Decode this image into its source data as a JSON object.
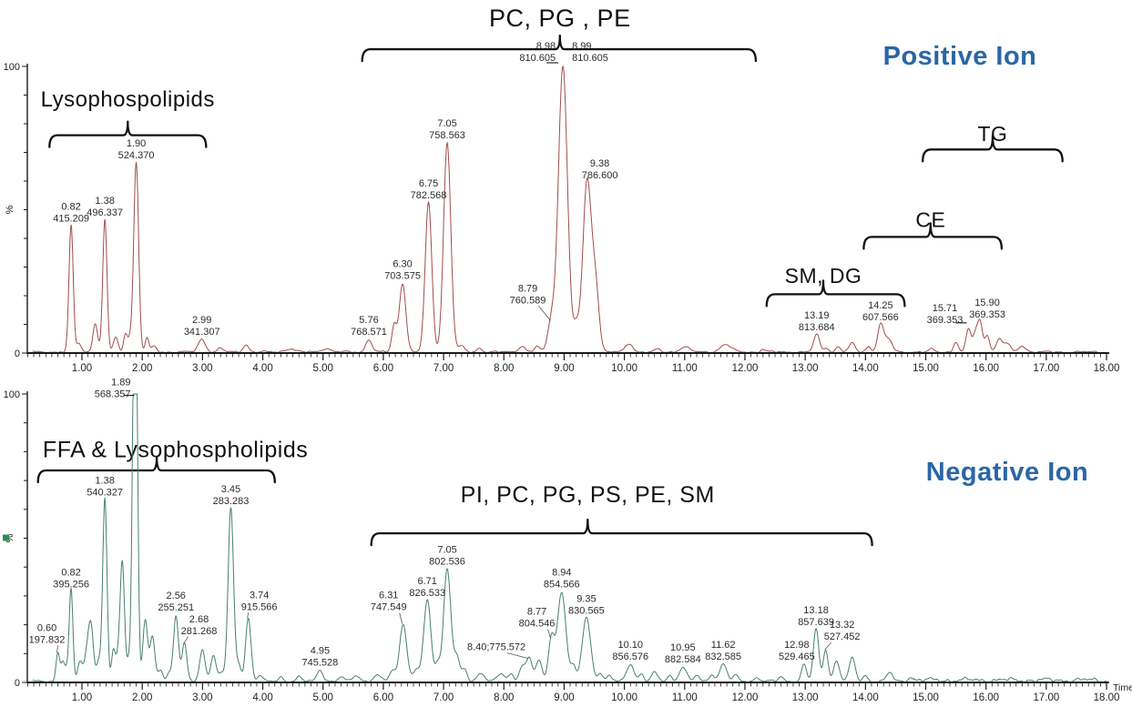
{
  "figure": {
    "background": "#ffffff",
    "axis_color": "#1a1a1a",
    "annotation_color": "#111111",
    "peak_label_color": "#2b2b2b",
    "title_color": "#2a66a6"
  },
  "chart_data": [
    {
      "type": "line",
      "id": "positive",
      "title": "Positive Ion",
      "trace_color": "#a24d4d",
      "ylabel": "%",
      "y_tick_labels": [
        "0",
        "100"
      ],
      "ylim": [
        0,
        100
      ],
      "xlim": [
        0.1,
        18.05
      ],
      "x_tick_labels": [
        "1.00",
        "2.00",
        "3.00",
        "4.00",
        "5.00",
        "6.00",
        "7.00",
        "8.00",
        "9.00",
        "10.00",
        "11.00",
        "12.00",
        "13.00",
        "14.00",
        "15.00",
        "16.00",
        "17.00",
        "18.00"
      ],
      "time_label": "",
      "noise": [
        {
          "from": 0.15,
          "to": 18.0,
          "amp": 0.7
        }
      ],
      "brackets": [
        {
          "label": "Lysophospolipids",
          "t1": 0.46,
          "t2": 3.06,
          "nub_t": 1.76,
          "bar_pct": 76,
          "label_pct": 86,
          "font": 24
        },
        {
          "label": "PC, PG , PE",
          "t1": 5.65,
          "t2": 12.18,
          "nub_t": 8.93,
          "bar_pct": 106,
          "label_pct": 114,
          "font": 27
        },
        {
          "label": "TG",
          "t1": 14.95,
          "t2": 17.27,
          "nub_t": 16.11,
          "bar_pct": 71,
          "label_pct": 74,
          "font": 23
        },
        {
          "label": "CE",
          "t1": 13.97,
          "t2": 16.26,
          "nub_t": 15.08,
          "bar_pct": 40.5,
          "label_pct": 44,
          "font": 23
        },
        {
          "label": "SM, DG",
          "t1": 12.36,
          "t2": 14.65,
          "nub_t": 13.3,
          "bar_pct": 20.5,
          "label_pct": 24.5,
          "font": 23
        }
      ],
      "peaks": [
        {
          "t": 0.82,
          "h": 44,
          "rt": "0.82",
          "mz": "415.209",
          "w": 0.035
        },
        {
          "t": 0.95,
          "h": 3
        },
        {
          "t": 1.22,
          "h": 10,
          "w": 0.04
        },
        {
          "t": 1.38,
          "h": 46,
          "rt": "1.38",
          "mz": "496.337",
          "w": 0.035
        },
        {
          "t": 1.56,
          "h": 5
        },
        {
          "t": 1.72,
          "h": 6,
          "w": 0.03
        },
        {
          "t": 1.8,
          "h": 5
        },
        {
          "t": 1.9,
          "h": 66,
          "rt": "1.90",
          "mz": "524.370",
          "w": 0.04
        },
        {
          "t": 2.08,
          "h": 5,
          "w": 0.03
        },
        {
          "t": 2.2,
          "h": 2
        },
        {
          "t": 2.99,
          "h": 4.5,
          "rt": "2.99",
          "mz": "341.307",
          "w": 0.06
        },
        {
          "t": 3.3,
          "h": 1.5
        },
        {
          "t": 3.72,
          "h": 2.5,
          "w": 0.05
        },
        {
          "t": 4.45,
          "h": 1.2,
          "w": 0.08
        },
        {
          "t": 5.05,
          "h": 1.2,
          "w": 0.08
        },
        {
          "t": 5.76,
          "h": 4.5,
          "rt": "5.76",
          "mz": "768.571",
          "w": 0.05
        },
        {
          "t": 6.18,
          "h": 9,
          "w": 0.04
        },
        {
          "t": 6.32,
          "h": 24,
          "rt": "6.30",
          "mz": "703.575",
          "w": 0.055
        },
        {
          "t": 6.75,
          "h": 52,
          "rt": "6.75",
          "mz": "782.568",
          "w": 0.055
        },
        {
          "t": 7.06,
          "h": 73,
          "rt": "7.05",
          "mz": "758.563",
          "w": 0.06
        },
        {
          "t": 7.3,
          "h": 2,
          "w": 0.05
        },
        {
          "t": 7.6,
          "h": 1.5
        },
        {
          "t": 8.3,
          "h": 2,
          "w": 0.06
        },
        {
          "t": 8.55,
          "h": 2
        },
        {
          "t": 8.79,
          "h": 11,
          "rt": "8.79",
          "mz": "760.589",
          "w": 0.06,
          "label_dx": -26,
          "label_dy": -14,
          "leader": true
        },
        {
          "t": 8.98,
          "h": 100,
          "rt": "8.98",
          "mz": "810.605",
          "w": 0.075,
          "label_anchor": "end",
          "label_dx": -8,
          "twin_rt": "8.99",
          "twin_mz": "810.605"
        },
        {
          "t": 9.2,
          "h": 8,
          "w": 0.05
        },
        {
          "t": 9.38,
          "h": 59,
          "rt": "9.38",
          "mz": "786.600",
          "w": 0.07,
          "label_dx": 14
        },
        {
          "t": 9.52,
          "h": 22,
          "w": 0.06
        },
        {
          "t": 10.08,
          "h": 3,
          "w": 0.06
        },
        {
          "t": 10.55,
          "h": 1
        },
        {
          "t": 11.0,
          "h": 1.8,
          "w": 0.08
        },
        {
          "t": 11.68,
          "h": 2.6,
          "w": 0.09
        },
        {
          "t": 12.3,
          "h": 1
        },
        {
          "t": 13.19,
          "h": 6,
          "rt": "13.19",
          "mz": "813.684",
          "w": 0.05
        },
        {
          "t": 13.35,
          "h": 1.5
        },
        {
          "t": 13.55,
          "h": 2
        },
        {
          "t": 13.78,
          "h": 3,
          "w": 0.05
        },
        {
          "t": 14.05,
          "h": 2
        },
        {
          "t": 14.25,
          "h": 9.5,
          "rt": "14.25",
          "mz": "607.566",
          "w": 0.05
        },
        {
          "t": 14.38,
          "h": 4.5,
          "w": 0.06
        },
        {
          "t": 15.1,
          "h": 1
        },
        {
          "t": 15.5,
          "h": 3.5,
          "w": 0.04
        },
        {
          "t": 15.71,
          "h": 8,
          "rt": "15.71",
          "mz": "369.353",
          "w": 0.04,
          "label_dx": -26,
          "label_dy": -2,
          "tick": true
        },
        {
          "t": 15.82,
          "h": 6,
          "w": 0.04
        },
        {
          "t": 15.9,
          "h": 10.5,
          "rt": "15.90",
          "mz": "369.353",
          "w": 0.04,
          "label_dx": 8
        },
        {
          "t": 16.02,
          "h": 6,
          "w": 0.04
        },
        {
          "t": 16.22,
          "h": 4.5,
          "w": 0.05
        },
        {
          "t": 16.35,
          "h": 3,
          "w": 0.05
        },
        {
          "t": 16.6,
          "h": 2.2,
          "w": 0.06
        }
      ]
    },
    {
      "type": "line",
      "id": "negative",
      "title": "Negative Ion",
      "trace_color": "#47806b",
      "marker_color": "#2e8b57",
      "ylabel": "%",
      "y_tick_labels": [
        "0",
        "100"
      ],
      "ylim": [
        0,
        100
      ],
      "xlim": [
        0.1,
        18.05
      ],
      "x_tick_labels": [
        "1.00",
        "2.00",
        "3.00",
        "4.00",
        "5.00",
        "6.00",
        "7.00",
        "8.00",
        "9.00",
        "10.00",
        "11.00",
        "12.00",
        "13.00",
        "14.00",
        "15.00",
        "16.00",
        "17.00",
        "18.00"
      ],
      "time_label": "Time",
      "noise": [
        {
          "from": 0.15,
          "to": 14.8,
          "amp": 0.8
        },
        {
          "from": 14.8,
          "to": 18.0,
          "amp": 1.6
        }
      ],
      "brackets": [
        {
          "label": "FFA & Lysophospholipids",
          "t1": 0.27,
          "t2": 4.2,
          "nub_t": 2.24,
          "label_t": 2.55,
          "bar_pct": 73.5,
          "label_pct": 78,
          "font": 25
        },
        {
          "label": "PI, PC, PG, PS, PE, SM",
          "t1": 5.8,
          "t2": 14.11,
          "nub_t": 9.39,
          "bar_pct": 51.7,
          "label_pct": 62.5,
          "font": 25
        }
      ],
      "peaks": [
        {
          "t": 0.6,
          "h": 10,
          "rt": "0.60",
          "mz": "197.832",
          "w": 0.03,
          "label_dx": -12,
          "label_dy": -6,
          "leader": true
        },
        {
          "t": 0.68,
          "h": 6,
          "w": 0.03
        },
        {
          "t": 0.75,
          "h": 4
        },
        {
          "t": 0.82,
          "h": 31,
          "rt": "0.82",
          "mz": "395.256",
          "w": 0.03
        },
        {
          "t": 0.97,
          "h": 7,
          "w": 0.04
        },
        {
          "t": 1.08,
          "h": 9,
          "w": 0.04
        },
        {
          "t": 1.15,
          "h": 19,
          "w": 0.04
        },
        {
          "t": 1.28,
          "h": 7
        },
        {
          "t": 1.38,
          "h": 63,
          "rt": "1.38",
          "mz": "540.327",
          "w": 0.035
        },
        {
          "t": 1.52,
          "h": 10,
          "w": 0.03
        },
        {
          "t": 1.6,
          "h": 8
        },
        {
          "t": 1.67,
          "h": 40,
          "w": 0.035
        },
        {
          "t": 1.78,
          "h": 8
        },
        {
          "t": 1.86,
          "h": 90,
          "w": 0.03
        },
        {
          "t": 1.9,
          "h": 97,
          "rt": "1.89",
          "mz": "568.357",
          "w": 0.03,
          "label_anchor": "end",
          "label_dx": -6,
          "tick": true
        },
        {
          "t": 2.05,
          "h": 21,
          "w": 0.04
        },
        {
          "t": 2.17,
          "h": 15,
          "w": 0.04
        },
        {
          "t": 2.3,
          "h": 4
        },
        {
          "t": 2.45,
          "h": 3
        },
        {
          "t": 2.56,
          "h": 23,
          "rt": "2.56",
          "mz": "255.251",
          "w": 0.04
        },
        {
          "t": 2.7,
          "h": 13,
          "rt": "2.68",
          "mz": "281.268",
          "w": 0.04,
          "label_dx": 16,
          "label_dy": -6,
          "leader": true
        },
        {
          "t": 3.0,
          "h": 11,
          "w": 0.045
        },
        {
          "t": 3.18,
          "h": 9,
          "w": 0.045
        },
        {
          "t": 3.32,
          "h": 3
        },
        {
          "t": 3.47,
          "h": 60,
          "rt": "3.45",
          "mz": "283.283",
          "w": 0.045
        },
        {
          "t": 3.6,
          "h": 6
        },
        {
          "t": 3.76,
          "h": 22,
          "rt": "3.74",
          "mz": "915.566",
          "w": 0.045,
          "label_dx": 12,
          "label_dy": -4,
          "leader": true
        },
        {
          "t": 3.95,
          "h": 2
        },
        {
          "t": 4.3,
          "h": 1.5
        },
        {
          "t": 4.6,
          "h": 1.5
        },
        {
          "t": 4.95,
          "h": 4,
          "rt": "4.95",
          "mz": "745.528",
          "w": 0.05
        },
        {
          "t": 5.3,
          "h": 1.5
        },
        {
          "t": 5.55,
          "h": 2,
          "w": 0.06
        },
        {
          "t": 5.9,
          "h": 2,
          "w": 0.06
        },
        {
          "t": 6.15,
          "h": 3.5,
          "w": 0.05
        },
        {
          "t": 6.33,
          "h": 20,
          "rt": "6.31",
          "mz": "747.549",
          "w": 0.06,
          "label_dx": -16,
          "label_dy": -10,
          "leader": true
        },
        {
          "t": 6.55,
          "h": 4,
          "w": 0.05
        },
        {
          "t": 6.73,
          "h": 28,
          "rt": "6.71",
          "mz": "826.533",
          "w": 0.06
        },
        {
          "t": 6.9,
          "h": 6
        },
        {
          "t": 7.06,
          "h": 39,
          "rt": "7.05",
          "mz": "802.536",
          "w": 0.06
        },
        {
          "t": 7.22,
          "h": 8,
          "w": 0.05
        },
        {
          "t": 7.35,
          "h": 4
        },
        {
          "t": 7.62,
          "h": 3,
          "w": 0.06
        },
        {
          "t": 7.95,
          "h": 2.5,
          "w": 0.06
        },
        {
          "t": 8.12,
          "h": 2.5
        },
        {
          "t": 8.3,
          "h": 5,
          "w": 0.05
        },
        {
          "t": 8.42,
          "h": 8,
          "rt": "8.40;775.572",
          "single": true,
          "w": 0.05,
          "label_dx": -36,
          "label_dy": -4,
          "leader": true
        },
        {
          "t": 8.58,
          "h": 7,
          "w": 0.05
        },
        {
          "t": 8.79,
          "h": 15,
          "rt": "8.77",
          "mz": "804.546",
          "w": 0.05,
          "label_dx": -16,
          "label_dy": -8,
          "leader": true
        },
        {
          "t": 8.96,
          "h": 31,
          "rt": "8.94",
          "mz": "854.566",
          "w": 0.07
        },
        {
          "t": 9.15,
          "h": 5
        },
        {
          "t": 9.37,
          "h": 22,
          "rt": "9.35",
          "mz": "830.565",
          "w": 0.07
        },
        {
          "t": 9.6,
          "h": 3
        },
        {
          "t": 9.75,
          "h": 2
        },
        {
          "t": 10.1,
          "h": 6,
          "rt": "10.10",
          "mz": "856.576",
          "w": 0.06
        },
        {
          "t": 10.28,
          "h": 2.5
        },
        {
          "t": 10.5,
          "h": 3,
          "w": 0.05
        },
        {
          "t": 10.75,
          "h": 2
        },
        {
          "t": 10.97,
          "h": 5,
          "rt": "10.95",
          "mz": "882.584",
          "w": 0.06
        },
        {
          "t": 11.2,
          "h": 2
        },
        {
          "t": 11.45,
          "h": 2.5
        },
        {
          "t": 11.64,
          "h": 6,
          "rt": "11.62",
          "mz": "832.585",
          "w": 0.06
        },
        {
          "t": 11.85,
          "h": 2
        },
        {
          "t": 12.2,
          "h": 1.5
        },
        {
          "t": 12.6,
          "h": 1.5
        },
        {
          "t": 12.98,
          "h": 6,
          "rt": "12.98",
          "mz": "529.465",
          "w": 0.04,
          "label_dx": -8
        },
        {
          "t": 13.18,
          "h": 18,
          "rt": "13.18",
          "mz": "857.639",
          "w": 0.045
        },
        {
          "t": 13.34,
          "h": 11,
          "rt": "13.32",
          "mz": "527.452",
          "w": 0.04,
          "label_dx": 18,
          "label_dy": -6,
          "leader": true
        },
        {
          "t": 13.52,
          "h": 7,
          "w": 0.05
        },
        {
          "t": 13.78,
          "h": 8,
          "w": 0.05
        },
        {
          "t": 14.0,
          "h": 2
        },
        {
          "t": 14.4,
          "h": 3,
          "w": 0.05
        },
        {
          "t": 14.75,
          "h": 1.5
        }
      ]
    }
  ]
}
